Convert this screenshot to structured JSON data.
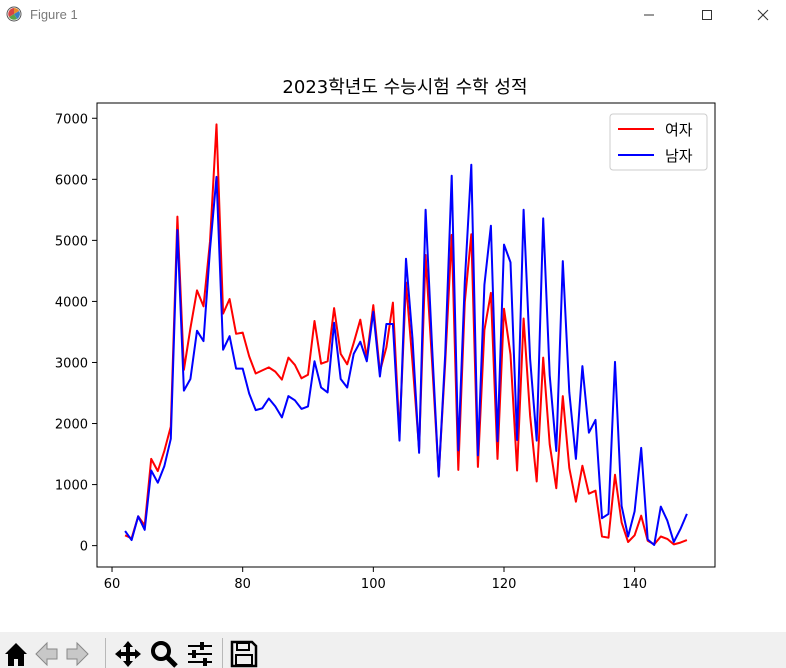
{
  "window": {
    "title": "Figure 1"
  },
  "icons": {
    "app": "matplotlib-icon",
    "minimize": "minimize-icon",
    "maximize": "maximize-icon",
    "close": "close-icon"
  },
  "toolbar": {
    "buttons": [
      "home-icon",
      "back-arrow-icon",
      "forward-arrow-icon",
      "pan-icon",
      "zoom-icon",
      "configure-subplots-icon",
      "save-icon"
    ]
  },
  "chart_data": {
    "type": "line",
    "title": "2023학년도 수능시험 수학 성적",
    "xlabel": "",
    "ylabel": "",
    "xlim": [
      57.7,
      152.3
    ],
    "ylim": [
      -350,
      7250
    ],
    "xticks": [
      60,
      80,
      100,
      120,
      140
    ],
    "yticks": [
      0,
      1000,
      2000,
      3000,
      4000,
      5000,
      6000,
      7000
    ],
    "legend": "top-right",
    "grid": false,
    "series": [
      {
        "name": "여자",
        "color": "#ff0000",
        "x": [
          62,
          63,
          64,
          65,
          66,
          67,
          68,
          69,
          70,
          71,
          72,
          73,
          74,
          75,
          76,
          77,
          78,
          79,
          80,
          81,
          82,
          83,
          84,
          85,
          86,
          87,
          88,
          89,
          90,
          91,
          92,
          93,
          94,
          95,
          96,
          97,
          98,
          99,
          100,
          101,
          102,
          103,
          104,
          105,
          106,
          107,
          108,
          109,
          110,
          111,
          112,
          113,
          114,
          115,
          116,
          117,
          118,
          119,
          120,
          121,
          122,
          123,
          124,
          125,
          126,
          127,
          128,
          129,
          130,
          131,
          132,
          133,
          134,
          135,
          136,
          137,
          138,
          139,
          140,
          141,
          142,
          143,
          144,
          145,
          146,
          147,
          148
        ],
        "y": [
          170,
          120,
          480,
          330,
          1420,
          1220,
          1550,
          1950,
          5390,
          2880,
          3560,
          4180,
          3920,
          4980,
          6900,
          3800,
          4040,
          3470,
          3490,
          3100,
          2820,
          2870,
          2920,
          2850,
          2720,
          3080,
          2960,
          2740,
          2800,
          3680,
          2980,
          3020,
          3890,
          3140,
          2970,
          3320,
          3700,
          3080,
          3940,
          2850,
          3250,
          3980,
          1820,
          4310,
          3000,
          1580,
          4760,
          3000,
          1150,
          2990,
          5090,
          1240,
          3990,
          5100,
          1290,
          3530,
          4140,
          1420,
          3880,
          3130,
          1230,
          3720,
          2130,
          1050,
          3080,
          1660,
          940,
          2450,
          1270,
          720,
          1310,
          850,
          900,
          150,
          130,
          1160,
          380,
          60,
          170,
          490,
          80,
          20,
          150,
          110,
          20,
          50,
          90
        ]
      },
      {
        "name": "남자",
        "color": "#0000ff",
        "x": [
          62,
          63,
          64,
          65,
          66,
          67,
          68,
          69,
          70,
          71,
          72,
          73,
          74,
          75,
          76,
          77,
          78,
          79,
          80,
          81,
          82,
          83,
          84,
          85,
          86,
          87,
          88,
          89,
          90,
          91,
          92,
          93,
          94,
          95,
          96,
          97,
          98,
          99,
          100,
          101,
          102,
          103,
          104,
          105,
          106,
          107,
          108,
          109,
          110,
          111,
          112,
          113,
          114,
          115,
          116,
          117,
          118,
          119,
          120,
          121,
          122,
          123,
          124,
          125,
          126,
          127,
          128,
          129,
          130,
          131,
          132,
          133,
          134,
          135,
          136,
          137,
          138,
          139,
          140,
          141,
          142,
          143,
          144,
          145,
          146,
          147,
          148
        ],
        "y": [
          240,
          90,
          480,
          260,
          1230,
          1030,
          1300,
          1750,
          5170,
          2540,
          2730,
          3520,
          3350,
          4850,
          6040,
          3210,
          3430,
          2900,
          2900,
          2490,
          2220,
          2250,
          2410,
          2280,
          2100,
          2450,
          2380,
          2240,
          2280,
          3020,
          2590,
          2510,
          3650,
          2730,
          2590,
          3140,
          3340,
          3020,
          3830,
          2770,
          3630,
          3630,
          1720,
          4700,
          3390,
          1520,
          5500,
          3250,
          1130,
          3130,
          6060,
          1560,
          4320,
          6240,
          1480,
          4270,
          5240,
          1710,
          4930,
          4640,
          1730,
          5500,
          3060,
          1720,
          5360,
          2790,
          1550,
          4660,
          2510,
          1420,
          2940,
          1850,
          2060,
          450,
          520,
          3010,
          650,
          150,
          560,
          1600,
          100,
          10,
          640,
          410,
          60,
          270,
          520
        ]
      }
    ]
  }
}
